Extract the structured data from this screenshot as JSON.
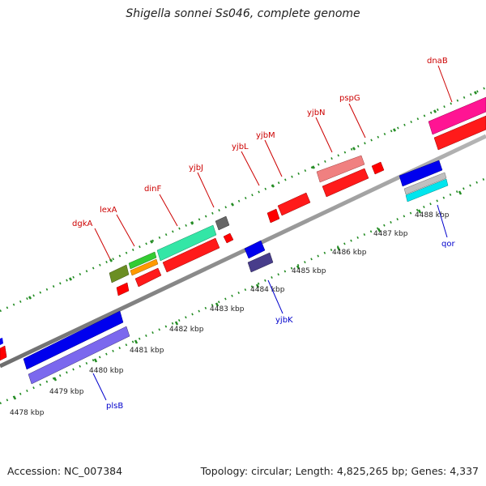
{
  "title": "Shigella sonnei Ss046, complete genome",
  "footer": {
    "accession": "Accession: NC_007384",
    "summary": "Topology: circular; Length: 4,825,265 bp; Genes: 4,337"
  },
  "ticks": [
    "4478 kbp",
    "4479 kbp",
    "4480 kbp",
    "4481 kbp",
    "4482 kbp",
    "4483 kbp",
    "4484 kbp",
    "4485 kbp",
    "4486 kbp",
    "4487 kbp",
    "4488 kbp"
  ],
  "genes": {
    "dgkA": "dgkA",
    "lexA": "lexA",
    "dinF": "dinF",
    "yjbJ": "yjbJ",
    "yjbL": "yjbL",
    "yjbM": "yjbM",
    "yjbN": "yjbN",
    "pspG": "pspG",
    "dnaB": "dnaB",
    "qor": "qor",
    "yjbK": "yjbK",
    "plsB": "plsB"
  },
  "colors": {
    "forward_label": "#cc0000",
    "reverse_label": "#0000cc",
    "backbone": "#8c8c8c",
    "tick_dots": "#228b22"
  }
}
